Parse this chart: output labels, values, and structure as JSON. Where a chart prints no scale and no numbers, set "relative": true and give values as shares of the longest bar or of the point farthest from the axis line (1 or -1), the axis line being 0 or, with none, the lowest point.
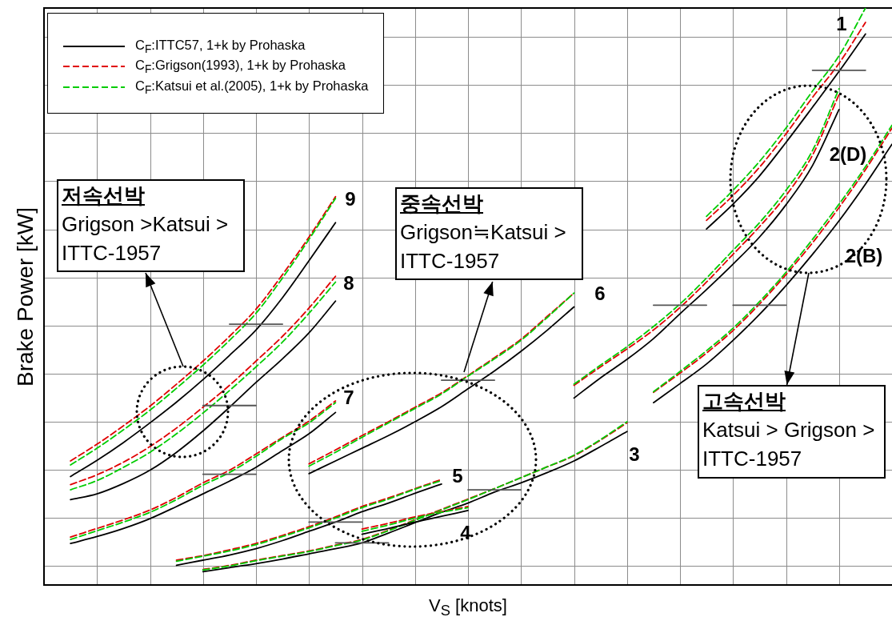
{
  "chart_data": {
    "type": "line",
    "relative": true,
    "grid": true,
    "legend": "top left",
    "xlabel": "V$_{S}$ [knots]",
    "ylabel": "Brake Power [kW]",
    "categories": [
      null,
      null,
      null,
      null,
      null,
      null,
      null,
      null,
      null,
      null,
      null,
      null,
      null,
      null,
      null,
      null,
      null,
      null,
      null,
      null,
      null,
      null,
      null,
      null,
      null,
      null,
      null,
      null,
      null,
      null,
      null,
      null,
      null
    ],
    "series": [
      {
        "name": "C$_{F}$:ITTC57, 1+k by Prohaska",
        "color": "#000000",
        "values": [
          null,
          null,
          null,
          null,
          null,
          null,
          null,
          null,
          null,
          null,
          null,
          null,
          null,
          null,
          null,
          null,
          null,
          null,
          null,
          null,
          null,
          null,
          null,
          null,
          null,
          0.617,
          0.66,
          0.709,
          0.767,
          0.828,
          0.89,
          0.955,
          null
        ]
      },
      {
        "name": "C$_{F}$:Grigson(1993), 1+k by Prohaska",
        "color": "#e00000",
        "line_style": "dashed",
        "values": [
          null,
          null,
          null,
          null,
          null,
          null,
          null,
          null,
          null,
          null,
          null,
          null,
          null,
          null,
          null,
          null,
          null,
          null,
          null,
          null,
          null,
          null,
          null,
          null,
          null,
          0.632,
          0.675,
          0.724,
          0.782,
          0.845,
          0.904,
          0.975,
          null
        ]
      },
      {
        "name": "C$_{F}$:Katsui et al.(2005), 1+k by Prohaska",
        "color": "#00cc00",
        "line_style": "dashed",
        "values": [
          null,
          null,
          null,
          null,
          null,
          null,
          null,
          null,
          null,
          null,
          null,
          null,
          null,
          null,
          null,
          null,
          null,
          null,
          null,
          null,
          null,
          null,
          null,
          null,
          null,
          0.639,
          0.684,
          0.734,
          0.792,
          0.856,
          0.917,
          1,
          null
        ]
      },
      {
        "color": "#000000",
        "values": [
          null,
          null,
          null,
          null,
          null,
          null,
          null,
          null,
          null,
          null,
          null,
          null,
          null,
          null,
          null,
          null,
          null,
          null,
          null,
          null,
          0.324,
          0.359,
          0.391,
          0.427,
          0.47,
          0.512,
          0.556,
          0.603,
          0.659,
          0.727,
          0.824,
          null,
          null
        ]
      },
      {
        "color": "#e00000",
        "line_style": "dashed",
        "values": [
          null,
          null,
          null,
          null,
          null,
          null,
          null,
          null,
          null,
          null,
          null,
          null,
          null,
          null,
          null,
          null,
          null,
          null,
          null,
          null,
          0.346,
          0.378,
          0.409,
          0.442,
          0.481,
          0.525,
          0.573,
          0.621,
          0.675,
          0.745,
          0.85,
          null,
          null
        ]
      },
      {
        "color": "#00cc00",
        "line_style": "dashed",
        "values": [
          null,
          null,
          null,
          null,
          null,
          null,
          null,
          null,
          null,
          null,
          null,
          null,
          null,
          null,
          null,
          null,
          null,
          null,
          null,
          null,
          0.348,
          0.381,
          0.413,
          0.448,
          0.487,
          0.532,
          0.58,
          0.628,
          0.684,
          0.753,
          0.86,
          null,
          null
        ]
      },
      {
        "color": "#000000",
        "values": [
          null,
          null,
          null,
          null,
          null,
          null,
          null,
          null,
          null,
          null,
          null,
          null,
          null,
          null,
          null,
          null,
          null,
          null,
          null,
          null,
          null,
          null,
          null,
          0.316,
          0.349,
          0.383,
          0.424,
          0.469,
          0.519,
          0.573,
          0.631,
          0.695,
          0.764
        ]
      },
      {
        "color": "#e00000",
        "line_style": "dashed",
        "values": [
          null,
          null,
          null,
          null,
          null,
          null,
          null,
          null,
          null,
          null,
          null,
          null,
          null,
          null,
          null,
          null,
          null,
          null,
          null,
          null,
          null,
          null,
          null,
          0.334,
          0.367,
          0.402,
          0.441,
          0.487,
          0.538,
          0.593,
          0.654,
          0.72,
          0.792
        ]
      },
      {
        "color": "#00cc00",
        "line_style": "dashed",
        "values": [
          null,
          null,
          null,
          null,
          null,
          null,
          null,
          null,
          null,
          null,
          null,
          null,
          null,
          null,
          null,
          null,
          null,
          null,
          null,
          null,
          null,
          null,
          null,
          0.335,
          0.37,
          0.406,
          0.445,
          0.491,
          0.542,
          0.599,
          0.66,
          0.725,
          0.797
        ]
      },
      {
        "color": "#000000",
        "values": [
          null,
          null,
          null,
          null,
          null,
          null,
          0.023,
          0.03,
          0.037,
          0.045,
          0.054,
          0.063,
          0.073,
          0.09,
          0.108,
          0.126,
          0.142,
          0.161,
          0.177,
          0.195,
          0.215,
          0.24,
          0.266,
          null,
          null,
          null,
          null,
          null,
          null,
          null,
          null,
          null,
          null
        ]
      },
      {
        "color": "#e00000",
        "line_style": "dashed",
        "values": [
          null,
          null,
          null,
          null,
          null,
          null,
          0.027,
          0.034,
          0.043,
          0.051,
          0.059,
          0.069,
          0.079,
          0.095,
          0.113,
          0.131,
          0.149,
          0.167,
          0.186,
          0.205,
          0.224,
          0.251,
          0.281,
          null,
          null,
          null,
          null,
          null,
          null,
          null,
          null,
          null,
          null
        ]
      },
      {
        "color": "#00cc00",
        "line_style": "dashed",
        "values": [
          null,
          null,
          null,
          null,
          null,
          null,
          0.026,
          0.033,
          0.042,
          0.05,
          0.058,
          0.068,
          0.078,
          0.094,
          0.112,
          0.13,
          0.148,
          0.167,
          0.186,
          0.205,
          0.225,
          0.252,
          0.283,
          null,
          null,
          null,
          null,
          null,
          null,
          null,
          null,
          null,
          null
        ]
      },
      {
        "color": "#000000",
        "values": [
          null,
          null,
          null,
          null,
          null,
          null,
          null,
          null,
          null,
          null,
          null,
          null,
          0.088,
          0.098,
          0.109,
          0.119,
          0.129,
          null,
          null,
          null,
          null,
          null,
          null,
          null,
          null,
          null,
          null,
          null,
          null,
          null,
          null,
          null,
          null
        ]
      },
      {
        "color": "#e00000",
        "line_style": "dashed",
        "values": [
          null,
          null,
          null,
          null,
          null,
          null,
          null,
          null,
          null,
          null,
          null,
          null,
          0.097,
          0.107,
          0.118,
          0.127,
          0.136,
          null,
          null,
          null,
          null,
          null,
          null,
          null,
          null,
          null,
          null,
          null,
          null,
          null,
          null,
          null,
          null
        ]
      },
      {
        "color": "#00cc00",
        "line_style": "dashed",
        "values": [
          null,
          null,
          null,
          null,
          null,
          null,
          null,
          null,
          null,
          null,
          null,
          null,
          0.093,
          0.104,
          0.116,
          0.126,
          0.134,
          null,
          null,
          null,
          null,
          null,
          null,
          null,
          null,
          null,
          null,
          null,
          null,
          null,
          null,
          null,
          null
        ]
      },
      {
        "color": "#000000",
        "values": [
          null,
          null,
          null,
          null,
          null,
          0.034,
          0.043,
          0.052,
          0.063,
          0.077,
          0.093,
          0.109,
          0.127,
          0.142,
          0.159,
          0.175,
          null,
          null,
          null,
          null,
          null,
          null,
          null,
          null,
          null,
          null,
          null,
          null,
          null,
          null,
          null,
          null,
          null
        ]
      },
      {
        "color": "#e00000",
        "line_style": "dashed",
        "values": [
          null,
          null,
          null,
          null,
          null,
          0.043,
          0.051,
          0.061,
          0.072,
          0.086,
          0.101,
          0.118,
          0.136,
          0.151,
          0.167,
          0.183,
          null,
          null,
          null,
          null,
          null,
          null,
          null,
          null,
          null,
          null,
          null,
          null,
          null,
          null,
          null,
          null,
          null
        ]
      },
      {
        "color": "#00cc00",
        "line_style": "dashed",
        "values": [
          null,
          null,
          null,
          null,
          null,
          0.041,
          0.05,
          0.059,
          0.07,
          0.084,
          0.099,
          0.116,
          0.134,
          0.149,
          0.166,
          0.181,
          null,
          null,
          null,
          null,
          null,
          null,
          null,
          null,
          null,
          null,
          null,
          null,
          null,
          null,
          null,
          null,
          null
        ]
      },
      {
        "color": "#000000",
        "values": [
          null,
          null,
          null,
          null,
          null,
          null,
          null,
          null,
          null,
          null,
          0.193,
          0.215,
          0.237,
          0.259,
          0.283,
          0.309,
          0.34,
          0.371,
          0.405,
          0.442,
          0.482,
          null,
          null,
          null,
          null,
          null,
          null,
          null,
          null,
          null,
          null,
          null,
          null
        ]
      },
      {
        "color": "#e00000",
        "line_style": "dashed",
        "values": [
          null,
          null,
          null,
          null,
          null,
          null,
          null,
          null,
          null,
          null,
          0.21,
          0.234,
          0.259,
          0.283,
          0.308,
          0.333,
          0.363,
          0.394,
          0.426,
          0.466,
          0.506,
          null,
          null,
          null,
          null,
          null,
          null,
          null,
          null,
          null,
          null,
          null,
          null
        ]
      },
      {
        "color": "#00cc00",
        "line_style": "dashed",
        "values": [
          null,
          null,
          null,
          null,
          null,
          null,
          null,
          null,
          null,
          null,
          0.206,
          0.23,
          0.256,
          0.281,
          0.306,
          0.331,
          0.362,
          0.392,
          0.424,
          0.464,
          0.506,
          null,
          null,
          null,
          null,
          null,
          null,
          null,
          null,
          null,
          null,
          null,
          null
        ]
      },
      {
        "color": "#000000",
        "values": [
          null,
          0.072,
          0.084,
          0.098,
          0.115,
          0.136,
          0.158,
          0.18,
          0.204,
          0.233,
          0.262,
          0.299,
          null,
          null,
          null,
          null,
          null,
          null,
          null,
          null,
          null,
          null,
          null,
          null,
          null,
          null,
          null,
          null,
          null,
          null,
          null,
          null,
          null
        ]
      },
      {
        "color": "#e00000",
        "line_style": "dashed",
        "values": [
          null,
          0.083,
          0.098,
          0.113,
          0.13,
          0.152,
          0.177,
          0.199,
          0.227,
          0.256,
          0.284,
          0.319,
          null,
          null,
          null,
          null,
          null,
          null,
          null,
          null,
          null,
          null,
          null,
          null,
          null,
          null,
          null,
          null,
          null,
          null,
          null,
          null,
          null
        ]
      },
      {
        "color": "#00cc00",
        "line_style": "dashed",
        "values": [
          null,
          0.079,
          0.094,
          0.109,
          0.126,
          0.148,
          0.173,
          0.195,
          0.223,
          0.254,
          0.281,
          0.316,
          null,
          null,
          null,
          null,
          null,
          null,
          null,
          null,
          null,
          null,
          null,
          null,
          null,
          null,
          null,
          null,
          null,
          null,
          null,
          null,
          null
        ]
      },
      {
        "color": "#000000",
        "values": [
          null,
          0.148,
          0.158,
          0.176,
          0.199,
          0.23,
          0.267,
          0.308,
          0.351,
          0.392,
          0.437,
          0.492,
          null,
          null,
          null,
          null,
          null,
          null,
          null,
          null,
          null,
          null,
          null,
          null,
          null,
          null,
          null,
          null,
          null,
          null,
          null,
          null,
          null
        ]
      },
      {
        "color": "#e00000",
        "line_style": "dashed",
        "values": [
          null,
          0.174,
          0.191,
          0.213,
          0.24,
          0.272,
          0.308,
          0.346,
          0.388,
          0.431,
          0.48,
          0.535,
          null,
          null,
          null,
          null,
          null,
          null,
          null,
          null,
          null,
          null,
          null,
          null,
          null,
          null,
          null,
          null,
          null,
          null,
          null,
          null,
          null
        ]
      },
      {
        "color": "#00cc00",
        "line_style": "dashed",
        "values": [
          null,
          0.165,
          0.181,
          0.204,
          0.23,
          0.262,
          0.298,
          0.337,
          0.378,
          0.421,
          0.471,
          0.525,
          null,
          null,
          null,
          null,
          null,
          null,
          null,
          null,
          null,
          null,
          null,
          null,
          null,
          null,
          null,
          null,
          null,
          null,
          null,
          null,
          null
        ]
      },
      {
        "color": "#000000",
        "values": [
          null,
          0.188,
          0.216,
          0.247,
          0.281,
          0.317,
          0.356,
          0.398,
          0.442,
          0.498,
          0.562,
          0.628,
          null,
          null,
          null,
          null,
          null,
          null,
          null,
          null,
          null,
          null,
          null,
          null,
          null,
          null,
          null,
          null,
          null,
          null,
          null,
          null,
          null
        ]
      },
      {
        "color": "#e00000",
        "line_style": "dashed",
        "values": [
          null,
          0.215,
          0.244,
          0.276,
          0.31,
          0.348,
          0.388,
          0.431,
          0.478,
          0.538,
          0.603,
          0.673,
          null,
          null,
          null,
          null,
          null,
          null,
          null,
          null,
          null,
          null,
          null,
          null,
          null,
          null,
          null,
          null,
          null,
          null,
          null,
          null,
          null
        ]
      },
      {
        "color": "#00cc00",
        "line_style": "dashed",
        "values": [
          null,
          0.208,
          0.237,
          0.269,
          0.303,
          0.341,
          0.381,
          0.424,
          0.471,
          0.532,
          0.599,
          0.67,
          null,
          null,
          null,
          null,
          null,
          null,
          null,
          null,
          null,
          null,
          null,
          null,
          null,
          null,
          null,
          null,
          null,
          null,
          null,
          null,
          null
        ]
      },
      {
        "color": "#555555",
        "values": [
          null,
          null,
          null,
          null,
          null,
          null,
          0.311,
          0.311,
          0.311,
          null,
          0.109,
          0.109,
          0.109,
          null,
          null,
          0.355,
          0.355,
          0.355,
          null,
          null,
          null,
          null,
          null,
          0.485,
          0.485,
          0.485,
          null,
          null,
          null,
          0.892,
          0.892,
          0.892,
          null
        ]
      },
      {
        "color": "#555555",
        "values": [
          null,
          null,
          null,
          null,
          null,
          null,
          0.192,
          0.192,
          0.192,
          null,
          null,
          0.073,
          0.073,
          0.073,
          null,
          null,
          0.165,
          0.165,
          0.165,
          null,
          null,
          null,
          null,
          null,
          null,
          null,
          0.485,
          0.485,
          0.485,
          null,
          null,
          null,
          null
        ]
      },
      {
        "color": "#555555",
        "values": [
          null,
          null,
          null,
          null,
          null,
          null,
          null,
          0.452,
          0.452,
          0.452,
          null,
          null,
          null,
          null,
          null,
          null,
          null,
          null,
          null,
          null,
          null,
          null,
          null,
          null,
          null,
          null,
          null,
          null,
          null,
          null,
          null,
          null,
          null
        ]
      }
    ],
    "annotations": [
      "1",
      "2(D)",
      "2(B)",
      "3",
      "4",
      "5",
      "6",
      "7",
      "8",
      "9",
      "저속선박\nGrigson >Katsui >\nITTC-1957",
      "중속선박\nGrigson≒Katsui >\nITTC-1957",
      "고속선박\nKatsui > Grigson >\nITTC-1957"
    ]
  }
}
